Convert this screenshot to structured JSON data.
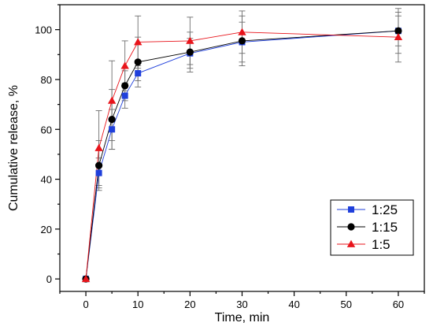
{
  "chart_data": {
    "type": "line",
    "xlabel": "Time, min",
    "ylabel": "Cumulative release, %",
    "x_ticks": [
      0,
      10,
      20,
      30,
      40,
      50,
      60
    ],
    "y_ticks": [
      0,
      20,
      40,
      60,
      80,
      100
    ],
    "xlim": [
      -5,
      65
    ],
    "ylim": [
      -5,
      110
    ],
    "grid": false,
    "legend_position": "bottom-right",
    "series": [
      {
        "name": "1:25",
        "color": "#1f3fdb",
        "marker": "square",
        "points": [
          {
            "x": 0,
            "y": 0,
            "err": 0
          },
          {
            "x": 2.5,
            "y": 42.5,
            "err": 6
          },
          {
            "x": 5,
            "y": 60,
            "err": 8
          },
          {
            "x": 7.5,
            "y": 73.5,
            "err": 5
          },
          {
            "x": 10,
            "y": 82.5,
            "err": 3
          },
          {
            "x": 20,
            "y": 90.5,
            "err": 6
          },
          {
            "x": 30,
            "y": 95,
            "err": 8
          },
          {
            "x": 60,
            "y": 99.5,
            "err": 6
          }
        ]
      },
      {
        "name": "1:15",
        "color": "#000000",
        "marker": "circle",
        "points": [
          {
            "x": 0,
            "y": 0,
            "err": 0
          },
          {
            "x": 2.5,
            "y": 45.5,
            "err": 10
          },
          {
            "x": 5,
            "y": 64,
            "err": 12
          },
          {
            "x": 7.5,
            "y": 77.5,
            "err": 6
          },
          {
            "x": 10,
            "y": 87,
            "err": 10
          },
          {
            "x": 20,
            "y": 91,
            "err": 8
          },
          {
            "x": 30,
            "y": 95.5,
            "err": 10
          },
          {
            "x": 60,
            "y": 99.5,
            "err": 9
          }
        ]
      },
      {
        "name": "1:5",
        "color": "#e8141b",
        "marker": "triangle",
        "points": [
          {
            "x": 0,
            "y": 0,
            "err": 0
          },
          {
            "x": 2.5,
            "y": 52.5,
            "err": 15
          },
          {
            "x": 5,
            "y": 71.5,
            "err": 16
          },
          {
            "x": 7.5,
            "y": 85.5,
            "err": 10
          },
          {
            "x": 10,
            "y": 95,
            "err": 10.5
          },
          {
            "x": 20,
            "y": 95.5,
            "err": 9.5
          },
          {
            "x": 30,
            "y": 99,
            "err": 8.5
          },
          {
            "x": 60,
            "y": 97,
            "err": 10
          }
        ]
      }
    ]
  }
}
